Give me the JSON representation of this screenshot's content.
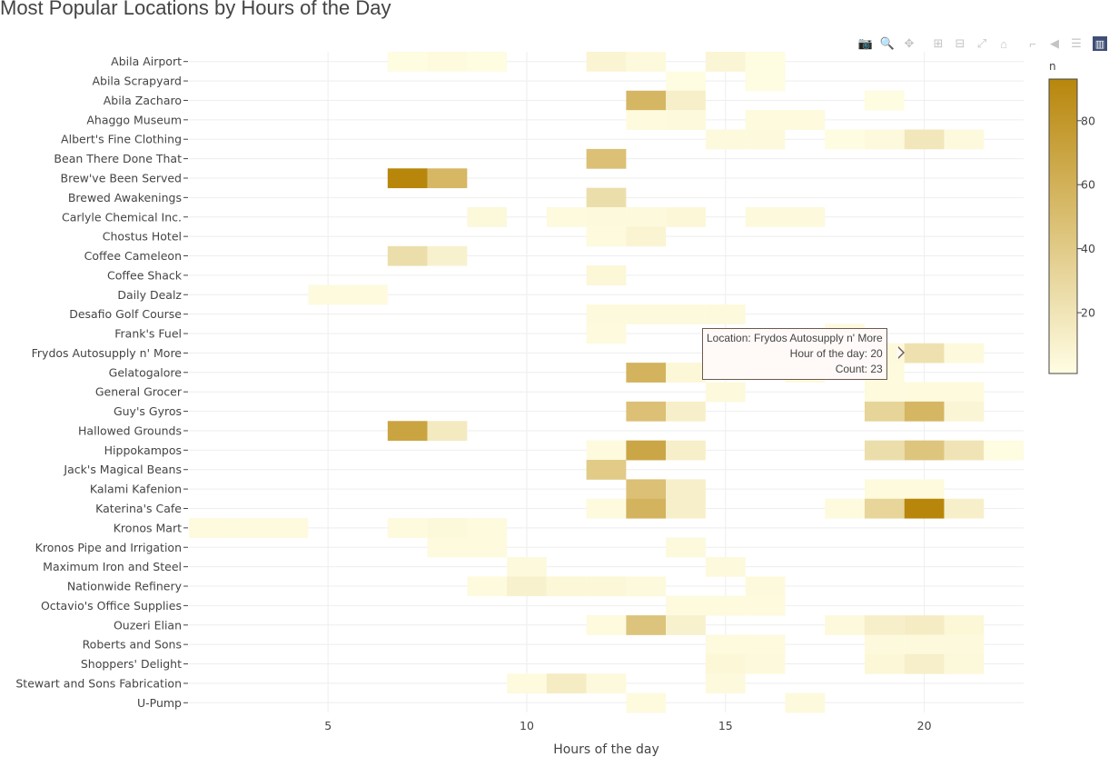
{
  "title": "Most Popular Locations by Hours of the Day",
  "modebar": [
    {
      "name": "camera-icon",
      "glyph": "📷"
    },
    {
      "name": "zoom-icon",
      "glyph": "🔍"
    },
    {
      "name": "pan-icon",
      "glyph": "✥"
    },
    {
      "name": "zoom-in-icon",
      "glyph": "⊞"
    },
    {
      "name": "zoom-out-icon",
      "glyph": "⊟"
    },
    {
      "name": "autoscale-icon",
      "glyph": "⤢"
    },
    {
      "name": "home-icon",
      "glyph": "⌂"
    },
    {
      "name": "spike-lines-icon",
      "glyph": "⌐"
    },
    {
      "name": "hover-closest-icon",
      "glyph": "◀"
    },
    {
      "name": "hover-compare-icon",
      "glyph": "☰"
    },
    {
      "name": "plotly-logo-icon",
      "glyph": "▥"
    }
  ],
  "tooltip": {
    "line1": "Location: Frydos Autosupply n' More",
    "line2": "Hour of the day: 20",
    "line3": "Count: 23"
  },
  "chart_data": {
    "type": "heatmap",
    "xlabel": "Hours of the day",
    "xlim": [
      1.5,
      22.5
    ],
    "xticks": [
      5,
      10,
      15,
      20
    ],
    "colorbar": {
      "title": "n",
      "range": [
        1,
        93
      ],
      "ticks": [
        20,
        40,
        60,
        80
      ],
      "colors": [
        "#fffde3",
        "#b8860b"
      ]
    },
    "locations": [
      "Abila Airport",
      "Abila Scrapyard",
      "Abila Zacharo",
      "Ahaggo Museum",
      "Albert's Fine Clothing",
      "Bean There Done That",
      "Brew've Been Served",
      "Brewed Awakenings",
      "Carlyle Chemical Inc.",
      "Chostus Hotel",
      "Coffee Cameleon",
      "Coffee Shack",
      "Daily Dealz",
      "Desafio Golf Course",
      "Frank's Fuel",
      "Frydos Autosupply n' More",
      "Gelatogalore",
      "General Grocer",
      "Guy's Gyros",
      "Hallowed Grounds",
      "Hippokampos",
      "Jack's Magical Beans",
      "Kalami Kafenion",
      "Katerina's Cafe",
      "Kronos Mart",
      "Kronos Pipe and Irrigation",
      "Maximum Iron and Steel",
      "Nationwide Refinery",
      "Octavio's Office Supplies",
      "Ouzeri Elian",
      "Roberts and Sons",
      "Shoppers' Delight",
      "Stewart and Sons Fabrication",
      "U-Pump"
    ],
    "cells": [
      [
        "Abila Airport",
        7,
        2
      ],
      [
        "Abila Airport",
        8,
        3
      ],
      [
        "Abila Airport",
        9,
        2
      ],
      [
        "Abila Airport",
        12,
        8
      ],
      [
        "Abila Airport",
        13,
        4
      ],
      [
        "Abila Airport",
        15,
        7
      ],
      [
        "Abila Airport",
        16,
        2
      ],
      [
        "Abila Scrapyard",
        14,
        2
      ],
      [
        "Abila Scrapyard",
        16,
        2
      ],
      [
        "Abila Zacharo",
        13,
        56
      ],
      [
        "Abila Zacharo",
        14,
        12
      ],
      [
        "Abila Zacharo",
        19,
        2
      ],
      [
        "Ahaggo Museum",
        13,
        3
      ],
      [
        "Ahaggo Museum",
        14,
        4
      ],
      [
        "Ahaggo Museum",
        16,
        3
      ],
      [
        "Ahaggo Museum",
        17,
        3
      ],
      [
        "Albert's Fine Clothing",
        15,
        4
      ],
      [
        "Albert's Fine Clothing",
        16,
        4
      ],
      [
        "Albert's Fine Clothing",
        18,
        2
      ],
      [
        "Albert's Fine Clothing",
        19,
        4
      ],
      [
        "Albert's Fine Clothing",
        20,
        18
      ],
      [
        "Albert's Fine Clothing",
        21,
        4
      ],
      [
        "Bean There Done That",
        12,
        48
      ],
      [
        "Brew've Been Served",
        7,
        93
      ],
      [
        "Brew've Been Served",
        8,
        55
      ],
      [
        "Brewed Awakenings",
        12,
        25
      ],
      [
        "Carlyle Chemical Inc.",
        9,
        5
      ],
      [
        "Carlyle Chemical Inc.",
        11,
        3
      ],
      [
        "Carlyle Chemical Inc.",
        12,
        4
      ],
      [
        "Carlyle Chemical Inc.",
        13,
        4
      ],
      [
        "Carlyle Chemical Inc.",
        14,
        6
      ],
      [
        "Carlyle Chemical Inc.",
        16,
        4
      ],
      [
        "Carlyle Chemical Inc.",
        17,
        4
      ],
      [
        "Chostus Hotel",
        12,
        3
      ],
      [
        "Chostus Hotel",
        13,
        8
      ],
      [
        "Coffee Cameleon",
        7,
        25
      ],
      [
        "Coffee Cameleon",
        8,
        10
      ],
      [
        "Coffee Shack",
        12,
        6
      ],
      [
        "Daily Dealz",
        5,
        3
      ],
      [
        "Daily Dealz",
        6,
        3
      ],
      [
        "Desafio Golf Course",
        12,
        4
      ],
      [
        "Desafio Golf Course",
        13,
        4
      ],
      [
        "Desafio Golf Course",
        14,
        4
      ],
      [
        "Desafio Golf Course",
        15,
        4
      ],
      [
        "Frank's Fuel",
        12,
        3
      ],
      [
        "Frank's Fuel",
        18,
        3
      ],
      [
        "Frydos Autosupply n' More",
        19,
        4
      ],
      [
        "Frydos Autosupply n' More",
        20,
        23
      ],
      [
        "Frydos Autosupply n' More",
        21,
        4
      ],
      [
        "Gelatogalore",
        13,
        58
      ],
      [
        "Gelatogalore",
        14,
        6
      ],
      [
        "Gelatogalore",
        17,
        3
      ],
      [
        "Gelatogalore",
        19,
        3
      ],
      [
        "General Grocer",
        15,
        4
      ],
      [
        "General Grocer",
        19,
        3
      ],
      [
        "General Grocer",
        20,
        3
      ],
      [
        "General Grocer",
        21,
        3
      ],
      [
        "Guy's Gyros",
        13,
        48
      ],
      [
        "Guy's Gyros",
        14,
        12
      ],
      [
        "Guy's Gyros",
        19,
        33
      ],
      [
        "Guy's Gyros",
        20,
        56
      ],
      [
        "Guy's Gyros",
        21,
        7
      ],
      [
        "Hallowed Grounds",
        7,
        70
      ],
      [
        "Hallowed Grounds",
        8,
        16
      ],
      [
        "Hippokampos",
        12,
        3
      ],
      [
        "Hippokampos",
        13,
        68
      ],
      [
        "Hippokampos",
        14,
        12
      ],
      [
        "Hippokampos",
        19,
        25
      ],
      [
        "Hippokampos",
        20,
        44
      ],
      [
        "Hippokampos",
        21,
        20
      ],
      [
        "Hippokampos",
        22,
        2
      ],
      [
        "Jack's Magical Beans",
        12,
        40
      ],
      [
        "Kalami Kafenion",
        13,
        48
      ],
      [
        "Kalami Kafenion",
        14,
        12
      ],
      [
        "Kalami Kafenion",
        19,
        3
      ],
      [
        "Kalami Kafenion",
        20,
        3
      ],
      [
        "Katerina's Cafe",
        12,
        3
      ],
      [
        "Katerina's Cafe",
        13,
        58
      ],
      [
        "Katerina's Cafe",
        14,
        12
      ],
      [
        "Katerina's Cafe",
        18,
        3
      ],
      [
        "Katerina's Cafe",
        19,
        32
      ],
      [
        "Katerina's Cafe",
        20,
        93
      ],
      [
        "Katerina's Cafe",
        21,
        12
      ],
      [
        "Kronos Mart",
        2,
        3
      ],
      [
        "Kronos Mart",
        3,
        3
      ],
      [
        "Kronos Mart",
        4,
        3
      ],
      [
        "Kronos Mart",
        7,
        3
      ],
      [
        "Kronos Mart",
        8,
        5
      ],
      [
        "Kronos Mart",
        9,
        3
      ],
      [
        "Kronos Pipe and Irrigation",
        8,
        3
      ],
      [
        "Kronos Pipe and Irrigation",
        9,
        3
      ],
      [
        "Kronos Pipe and Irrigation",
        14,
        4
      ],
      [
        "Maximum Iron and Steel",
        10,
        4
      ],
      [
        "Maximum Iron and Steel",
        15,
        4
      ],
      [
        "Nationwide Refinery",
        9,
        3
      ],
      [
        "Nationwide Refinery",
        10,
        10
      ],
      [
        "Nationwide Refinery",
        11,
        6
      ],
      [
        "Nationwide Refinery",
        12,
        6
      ],
      [
        "Nationwide Refinery",
        13,
        4
      ],
      [
        "Nationwide Refinery",
        16,
        4
      ],
      [
        "Octavio's Office Supplies",
        14,
        3
      ],
      [
        "Octavio's Office Supplies",
        15,
        3
      ],
      [
        "Octavio's Office Supplies",
        16,
        3
      ],
      [
        "Ouzeri Elian",
        12,
        3
      ],
      [
        "Ouzeri Elian",
        13,
        45
      ],
      [
        "Ouzeri Elian",
        14,
        10
      ],
      [
        "Ouzeri Elian",
        18,
        4
      ],
      [
        "Ouzeri Elian",
        19,
        12
      ],
      [
        "Ouzeri Elian",
        20,
        14
      ],
      [
        "Ouzeri Elian",
        21,
        6
      ],
      [
        "Roberts and Sons",
        15,
        3
      ],
      [
        "Roberts and Sons",
        16,
        3
      ],
      [
        "Roberts and Sons",
        19,
        4
      ],
      [
        "Roberts and Sons",
        20,
        4
      ],
      [
        "Roberts and Sons",
        21,
        4
      ],
      [
        "Shoppers' Delight",
        15,
        6
      ],
      [
        "Shoppers' Delight",
        16,
        4
      ],
      [
        "Shoppers' Delight",
        19,
        6
      ],
      [
        "Shoppers' Delight",
        20,
        12
      ],
      [
        "Shoppers' Delight",
        21,
        5
      ],
      [
        "Stewart and Sons Fabrication",
        10,
        3
      ],
      [
        "Stewart and Sons Fabrication",
        11,
        14
      ],
      [
        "Stewart and Sons Fabrication",
        12,
        4
      ],
      [
        "Stewart and Sons Fabrication",
        15,
        4
      ],
      [
        "U-Pump",
        13,
        3
      ],
      [
        "U-Pump",
        17,
        4
      ]
    ]
  }
}
